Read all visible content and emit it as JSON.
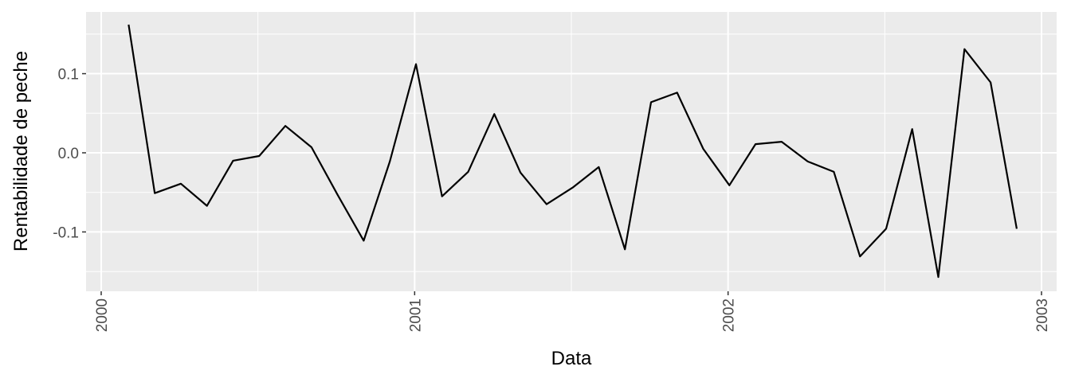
{
  "chart_data": {
    "type": "line",
    "title": "",
    "xlabel": "Data",
    "ylabel": "Rentabilidade de peche",
    "x_ticks": [
      "2000",
      "2001",
      "2002",
      "2003"
    ],
    "y_ticks": [
      "-0.1",
      "0.0",
      "0.1"
    ],
    "y_tick_values": [
      -0.1,
      0.0,
      0.1
    ],
    "xlim": [
      "2000-01-01",
      "2003-01-01"
    ],
    "ylim": [
      -0.175,
      0.178
    ],
    "grid": true,
    "panel_background": "#EBEBEB",
    "line_color": "#000000",
    "x": [
      "2000-02",
      "2000-03",
      "2000-04",
      "2000-05",
      "2000-06",
      "2000-07",
      "2000-08",
      "2000-09",
      "2000-10",
      "2000-11",
      "2000-12",
      "2001-01",
      "2001-02",
      "2001-03",
      "2001-04",
      "2001-05",
      "2001-06",
      "2001-07",
      "2001-08",
      "2001-09",
      "2001-10",
      "2001-11",
      "2001-12",
      "2002-01",
      "2002-02",
      "2002-03",
      "2002-04",
      "2002-05",
      "2002-06",
      "2002-07",
      "2002-08",
      "2002-09",
      "2002-10",
      "2002-11",
      "2002-12"
    ],
    "values": [
      0.162,
      -0.051,
      -0.039,
      -0.067,
      -0.01,
      -0.004,
      0.034,
      0.007,
      -0.053,
      -0.111,
      -0.011,
      0.112,
      -0.055,
      -0.024,
      0.049,
      -0.025,
      -0.065,
      -0.044,
      -0.018,
      -0.122,
      0.064,
      0.076,
      0.005,
      -0.041,
      0.011,
      0.014,
      -0.011,
      -0.024,
      -0.131,
      -0.096,
      0.03,
      -0.157,
      0.131,
      0.089,
      -0.096
    ]
  }
}
